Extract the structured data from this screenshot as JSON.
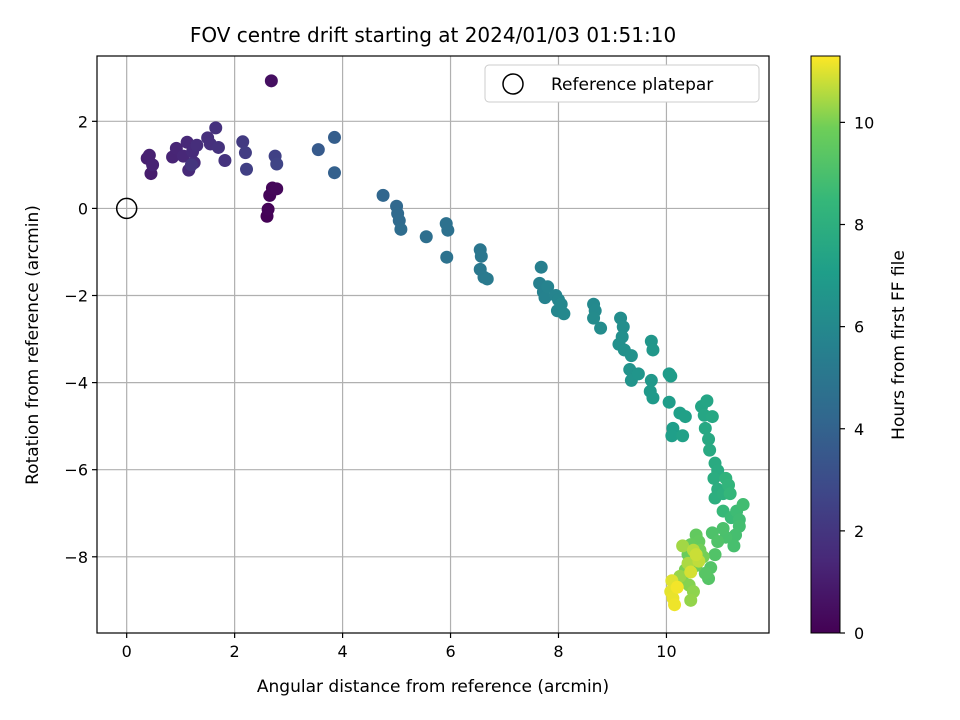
{
  "chart_data": {
    "type": "scatter",
    "title": "FOV centre drift starting at 2024/01/03 01:51:10",
    "xlabel": "Angular distance from reference (arcmin)",
    "ylabel": "Rotation from reference (arcmin)",
    "xlim": [
      -0.55,
      11.9
    ],
    "ylim": [
      -9.75,
      3.5
    ],
    "xticks": [
      0,
      2,
      4,
      6,
      8,
      10
    ],
    "yticks": [
      -8,
      -6,
      -4,
      -2,
      0,
      2
    ],
    "grid": true,
    "legend": {
      "placement": "top-right",
      "entries": [
        "Reference platepar"
      ]
    },
    "reference_point": {
      "x": 0,
      "y": 0,
      "label": "Reference platepar"
    },
    "colorbar": {
      "label": "Hours from first FF file",
      "min": 0,
      "max": 11.3,
      "ticks": [
        0,
        2,
        4,
        6,
        8,
        10
      ],
      "colormap": "viridis"
    },
    "series": [
      {
        "points": [
          [
            2.6,
            -0.18,
            0.05
          ],
          [
            2.62,
            -0.02,
            0.1
          ],
          [
            2.65,
            0.3,
            0.15
          ],
          [
            2.7,
            0.47,
            0.2
          ],
          [
            2.78,
            0.45,
            0.25
          ],
          [
            2.68,
            2.93,
            0.5
          ],
          [
            0.45,
            0.8,
            1.0
          ],
          [
            0.38,
            1.15,
            1.1
          ],
          [
            0.42,
            1.22,
            1.15
          ],
          [
            0.48,
            1.0,
            1.2
          ],
          [
            0.85,
            1.18,
            1.3
          ],
          [
            0.92,
            1.38,
            1.35
          ],
          [
            1.05,
            1.2,
            1.4
          ],
          [
            1.12,
            1.52,
            1.45
          ],
          [
            1.15,
            0.88,
            1.5
          ],
          [
            1.22,
            1.3,
            1.55
          ],
          [
            1.25,
            1.05,
            1.6
          ],
          [
            1.3,
            1.45,
            1.65
          ],
          [
            1.5,
            1.62,
            1.7
          ],
          [
            1.55,
            1.48,
            1.75
          ],
          [
            1.65,
            1.85,
            1.8
          ],
          [
            1.7,
            1.4,
            1.85
          ],
          [
            1.82,
            1.1,
            1.9
          ],
          [
            1.2,
            1.0,
            1.95
          ],
          [
            2.15,
            1.53,
            2.2
          ],
          [
            2.2,
            1.28,
            2.3
          ],
          [
            2.22,
            0.9,
            2.4
          ],
          [
            2.75,
            1.2,
            2.5
          ],
          [
            2.78,
            1.02,
            2.6
          ],
          [
            3.55,
            1.35,
            3.6
          ],
          [
            3.85,
            1.63,
            3.8
          ],
          [
            3.85,
            0.82,
            3.9
          ],
          [
            4.75,
            0.3,
            4.2
          ],
          [
            5.0,
            0.05,
            4.3
          ],
          [
            5.02,
            -0.12,
            4.35
          ],
          [
            5.05,
            -0.28,
            4.4
          ],
          [
            5.08,
            -0.48,
            4.5
          ],
          [
            5.55,
            -0.65,
            4.6
          ],
          [
            5.92,
            -0.35,
            4.7
          ],
          [
            5.95,
            -0.5,
            4.75
          ],
          [
            5.93,
            -1.12,
            4.8
          ],
          [
            6.55,
            -0.95,
            5.0
          ],
          [
            6.57,
            -1.1,
            5.05
          ],
          [
            6.55,
            -1.4,
            5.1
          ],
          [
            6.62,
            -1.58,
            5.15
          ],
          [
            6.68,
            -1.62,
            5.2
          ],
          [
            7.68,
            -1.35,
            5.5
          ],
          [
            7.65,
            -1.72,
            5.55
          ],
          [
            7.72,
            -1.92,
            5.6
          ],
          [
            7.75,
            -2.05,
            5.65
          ],
          [
            7.8,
            -1.8,
            5.7
          ],
          [
            7.95,
            -2.0,
            5.75
          ],
          [
            8.0,
            -2.1,
            5.8
          ],
          [
            7.98,
            -2.35,
            5.85
          ],
          [
            8.05,
            -2.2,
            5.9
          ],
          [
            8.1,
            -2.42,
            5.95
          ],
          [
            8.65,
            -2.2,
            6.0
          ],
          [
            8.68,
            -2.35,
            6.05
          ],
          [
            8.65,
            -2.52,
            6.1
          ],
          [
            8.78,
            -2.75,
            6.15
          ],
          [
            9.15,
            -2.52,
            6.2
          ],
          [
            9.2,
            -2.72,
            6.25
          ],
          [
            9.18,
            -2.95,
            6.3
          ],
          [
            9.12,
            -3.12,
            6.35
          ],
          [
            9.22,
            -3.25,
            6.4
          ],
          [
            9.35,
            -3.38,
            6.45
          ],
          [
            9.32,
            -3.7,
            6.5
          ],
          [
            9.35,
            -3.95,
            6.55
          ],
          [
            9.48,
            -3.8,
            6.6
          ],
          [
            9.72,
            -3.05,
            6.65
          ],
          [
            9.75,
            -3.25,
            6.7
          ],
          [
            9.72,
            -3.95,
            6.75
          ],
          [
            9.7,
            -4.2,
            6.8
          ],
          [
            9.75,
            -4.35,
            6.85
          ],
          [
            10.05,
            -3.8,
            6.9
          ],
          [
            10.08,
            -3.85,
            6.95
          ],
          [
            10.05,
            -4.45,
            7.0
          ],
          [
            10.12,
            -5.05,
            7.05
          ],
          [
            10.1,
            -5.22,
            7.1
          ],
          [
            10.25,
            -4.7,
            7.15
          ],
          [
            10.35,
            -4.78,
            7.2
          ],
          [
            10.3,
            -5.22,
            7.25
          ],
          [
            10.65,
            -4.55,
            7.4
          ],
          [
            10.75,
            -4.42,
            7.45
          ],
          [
            10.7,
            -4.75,
            7.5
          ],
          [
            10.85,
            -4.78,
            7.55
          ],
          [
            10.72,
            -5.05,
            7.6
          ],
          [
            10.78,
            -5.3,
            7.65
          ],
          [
            10.8,
            -5.55,
            7.7
          ],
          [
            10.9,
            -5.85,
            7.75
          ],
          [
            10.95,
            -6.02,
            7.8
          ],
          [
            10.88,
            -6.2,
            7.85
          ],
          [
            10.95,
            -6.45,
            7.9
          ],
          [
            10.9,
            -6.65,
            7.95
          ],
          [
            11.05,
            -6.55,
            8.0
          ],
          [
            11.1,
            -6.2,
            8.2
          ],
          [
            11.15,
            -6.35,
            8.3
          ],
          [
            11.18,
            -6.55,
            8.4
          ],
          [
            11.05,
            -6.95,
            8.5
          ],
          [
            11.2,
            -7.1,
            8.6
          ],
          [
            11.3,
            -6.95,
            8.7
          ],
          [
            11.35,
            -7.15,
            8.75
          ],
          [
            11.42,
            -6.8,
            8.8
          ],
          [
            11.35,
            -7.3,
            8.85
          ],
          [
            11.28,
            -7.5,
            8.9
          ],
          [
            11.25,
            -7.75,
            8.95
          ],
          [
            11.1,
            -7.55,
            9.0
          ],
          [
            11.05,
            -7.35,
            9.05
          ],
          [
            10.85,
            -7.45,
            9.1
          ],
          [
            10.95,
            -7.65,
            9.15
          ],
          [
            10.9,
            -7.95,
            9.2
          ],
          [
            10.82,
            -8.25,
            9.25
          ],
          [
            10.78,
            -8.5,
            9.3
          ],
          [
            10.72,
            -8.38,
            9.35
          ],
          [
            10.55,
            -7.5,
            9.6
          ],
          [
            10.6,
            -7.65,
            9.65
          ],
          [
            10.45,
            -7.72,
            9.7
          ],
          [
            10.4,
            -7.95,
            9.75
          ],
          [
            10.5,
            -8.05,
            9.8
          ],
          [
            10.55,
            -8.2,
            9.85
          ],
          [
            10.62,
            -7.85,
            9.9
          ],
          [
            10.68,
            -8.0,
            9.95
          ],
          [
            10.35,
            -8.3,
            10.0
          ],
          [
            10.3,
            -8.55,
            10.05
          ],
          [
            10.42,
            -8.65,
            10.1
          ],
          [
            10.5,
            -8.8,
            10.2
          ],
          [
            10.45,
            -9.0,
            10.25
          ],
          [
            10.25,
            -8.45,
            10.3
          ],
          [
            10.3,
            -7.75,
            10.4
          ],
          [
            10.4,
            -8.15,
            10.5
          ],
          [
            10.5,
            -7.85,
            10.6
          ],
          [
            10.6,
            -8.1,
            10.7
          ],
          [
            10.55,
            -7.95,
            10.8
          ],
          [
            10.45,
            -8.35,
            10.9
          ],
          [
            10.1,
            -8.55,
            11.0
          ],
          [
            10.08,
            -8.8,
            11.05
          ],
          [
            10.12,
            -8.95,
            11.1
          ],
          [
            10.15,
            -9.1,
            11.15
          ],
          [
            10.2,
            -8.7,
            11.2
          ]
        ]
      }
    ]
  }
}
